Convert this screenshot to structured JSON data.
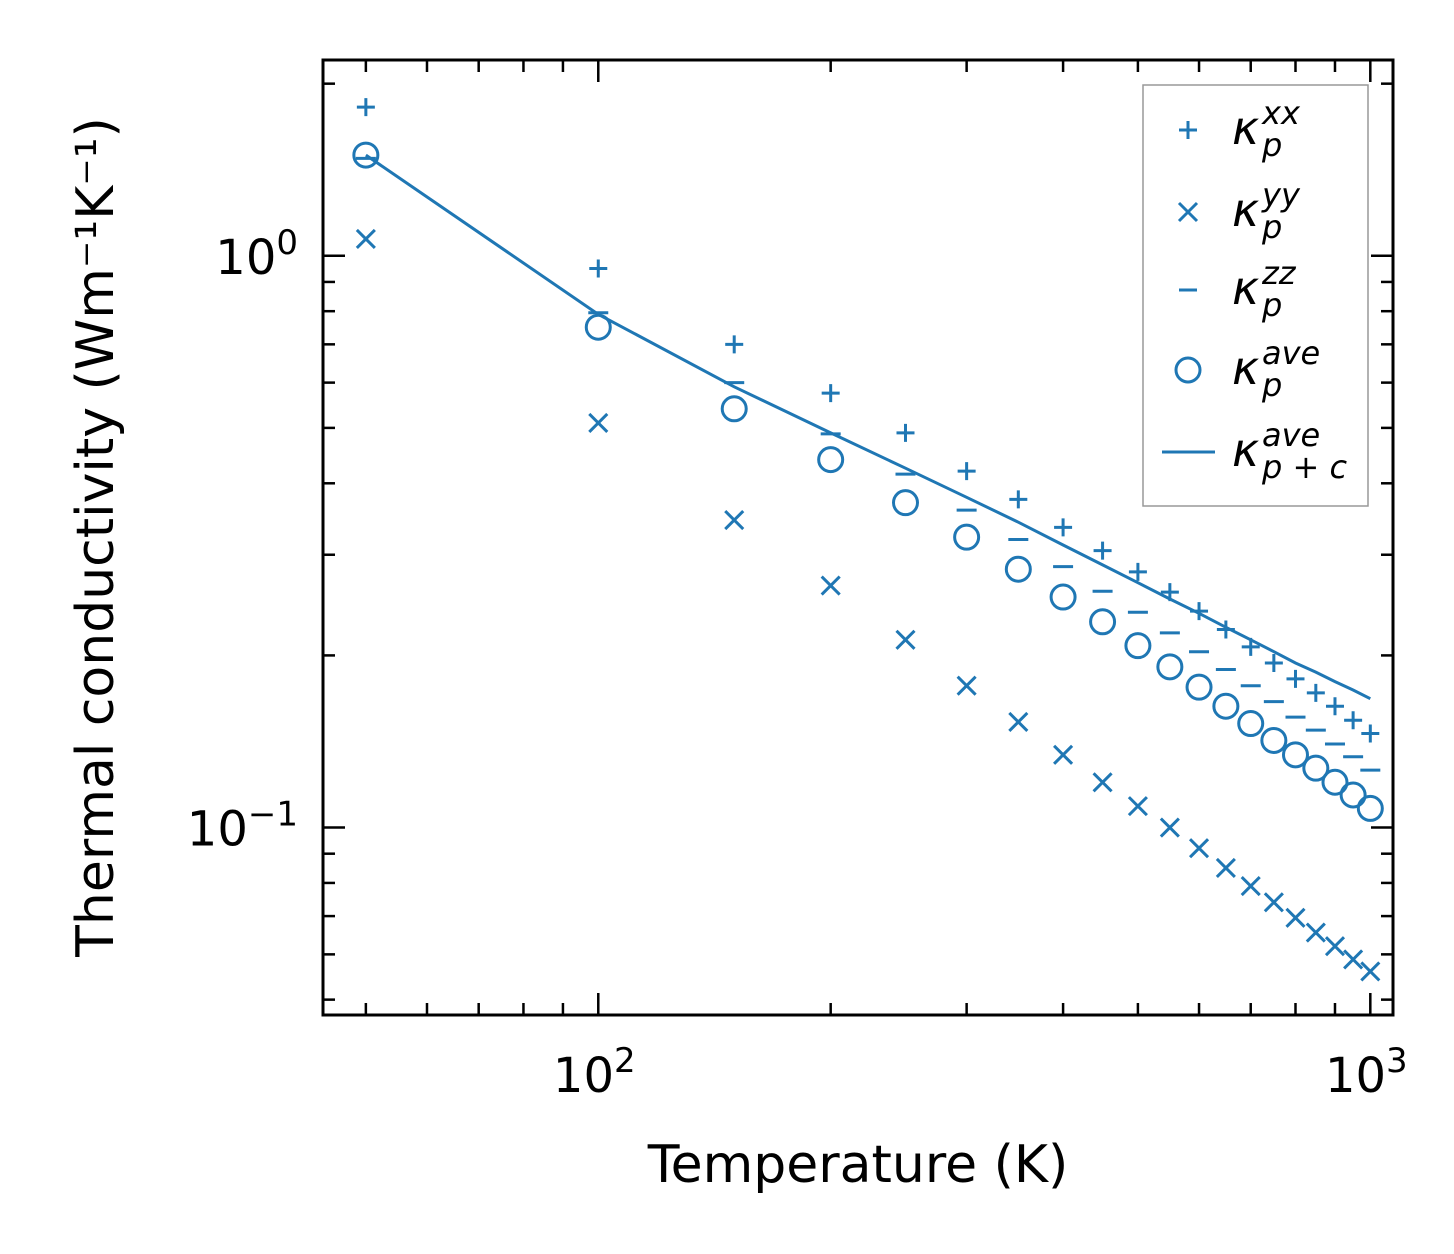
{
  "chart_data": {
    "type": "scatter",
    "title": "",
    "xlabel": "Temperature (K)",
    "ylabel": "Thermal conductivity (Wm⁻¹K⁻¹)",
    "xscale": "log",
    "yscale": "log",
    "xlim": [
      44,
      1070
    ],
    "ylim": [
      0.047,
      2.2
    ],
    "x_ticks": [
      {
        "base": "10",
        "exp": "2",
        "value": 100
      },
      {
        "base": "10",
        "exp": "3",
        "value": 1000
      }
    ],
    "y_ticks": [
      {
        "base": "10",
        "exp": "0",
        "value": 1
      },
      {
        "base": "10",
        "exp": "−1",
        "value": 0.1
      }
    ],
    "color": "#1f77b4",
    "legend_position": "top-right",
    "x": [
      50,
      100,
      150,
      200,
      250,
      300,
      350,
      400,
      450,
      500,
      550,
      600,
      650,
      700,
      750,
      800,
      850,
      900,
      950,
      1000
    ],
    "series": [
      {
        "name": "κ_p^xx",
        "legend": {
          "main": "κ",
          "sub": "p",
          "sup": "xx"
        },
        "marker": "plus",
        "values": [
          1.82,
          0.95,
          0.7,
          0.575,
          0.49,
          0.42,
          0.375,
          0.335,
          0.305,
          0.28,
          0.258,
          0.239,
          0.222,
          0.207,
          0.194,
          0.182,
          0.172,
          0.163,
          0.154,
          0.146
        ]
      },
      {
        "name": "κ_p^yy",
        "legend": {
          "main": "κ",
          "sub": "p",
          "sup": "yy"
        },
        "marker": "x",
        "values": [
          1.07,
          0.51,
          0.345,
          0.265,
          0.213,
          0.177,
          0.153,
          0.134,
          0.12,
          0.109,
          0.1,
          0.092,
          0.085,
          0.079,
          0.074,
          0.0695,
          0.0655,
          0.062,
          0.0588,
          0.056
        ]
      },
      {
        "name": "κ_p^zz",
        "legend": {
          "main": "κ",
          "sub": "p",
          "sup": "zz"
        },
        "marker": "hline",
        "values": [
          1.48,
          0.795,
          0.6,
          0.488,
          0.415,
          0.359,
          0.319,
          0.286,
          0.259,
          0.238,
          0.219,
          0.203,
          0.189,
          0.177,
          0.166,
          0.156,
          0.148,
          0.14,
          0.133,
          0.126
        ]
      },
      {
        "name": "κ_p^ave",
        "legend": {
          "main": "κ",
          "sub": "p",
          "sup": "ave"
        },
        "marker": "circle",
        "values": [
          1.5,
          0.75,
          0.54,
          0.44,
          0.37,
          0.322,
          0.283,
          0.253,
          0.229,
          0.208,
          0.191,
          0.176,
          0.163,
          0.152,
          0.142,
          0.134,
          0.127,
          0.12,
          0.114,
          0.108
        ]
      },
      {
        "name": "κ_p+c^ave",
        "legend": {
          "main": "κ",
          "sub": "p + c",
          "sup": "ave"
        },
        "marker": "line",
        "values": [
          1.5,
          0.79,
          0.59,
          0.49,
          0.425,
          0.378,
          0.342,
          0.312,
          0.288,
          0.268,
          0.251,
          0.237,
          0.224,
          0.213,
          0.203,
          0.194,
          0.187,
          0.18,
          0.174,
          0.168
        ]
      }
    ]
  }
}
